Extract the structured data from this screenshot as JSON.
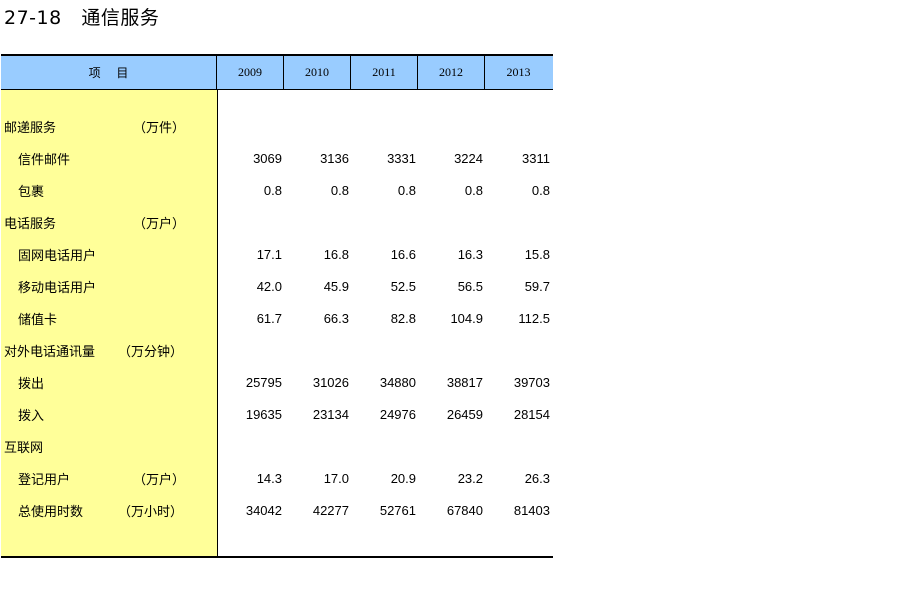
{
  "title": "27-18   通信服务",
  "header": {
    "item_label": "项  目",
    "years": [
      "2009",
      "2010",
      "2011",
      "2012",
      "2013"
    ]
  },
  "rows": [
    {
      "name": "邮递服务",
      "unit": "（万件）",
      "values": []
    },
    {
      "name": "信件邮件",
      "unit": "",
      "values": [
        "3069",
        "3136",
        "3331",
        "3224",
        "3311"
      ]
    },
    {
      "name": "包裹",
      "unit": "",
      "values": [
        "0.8",
        "0.8",
        "0.8",
        "0.8",
        "0.8"
      ]
    },
    {
      "name": "电话服务",
      "unit": "（万户）",
      "values": []
    },
    {
      "name": "固网电话用户",
      "unit": "",
      "values": [
        "17.1",
        "16.8",
        "16.6",
        "16.3",
        "15.8"
      ]
    },
    {
      "name": "移动电话用户",
      "unit": "",
      "values": [
        "42.0",
        "45.9",
        "52.5",
        "56.5",
        "59.7"
      ]
    },
    {
      "name": "储值卡",
      "unit": "",
      "values": [
        "61.7",
        "66.3",
        "82.8",
        "104.9",
        "112.5"
      ]
    },
    {
      "name": "对外电话通讯量",
      "unit": "（万分钟）",
      "values": []
    },
    {
      "name": "拨出",
      "unit": "",
      "values": [
        "25795",
        "31026",
        "34880",
        "38817",
        "39703"
      ]
    },
    {
      "name": "拨入",
      "unit": "",
      "values": [
        "19635",
        "23134",
        "24976",
        "26459",
        "28154"
      ]
    },
    {
      "name": "互联网",
      "unit": "",
      "values": []
    },
    {
      "name": "登记用户",
      "unit": "（万户）",
      "values": [
        "14.3",
        "17.0",
        "20.9",
        "23.2",
        "26.3"
      ]
    },
    {
      "name": "总使用时数",
      "unit": "（万小时）",
      "values": [
        "34042",
        "42277",
        "52761",
        "67840",
        "81403"
      ]
    }
  ]
}
